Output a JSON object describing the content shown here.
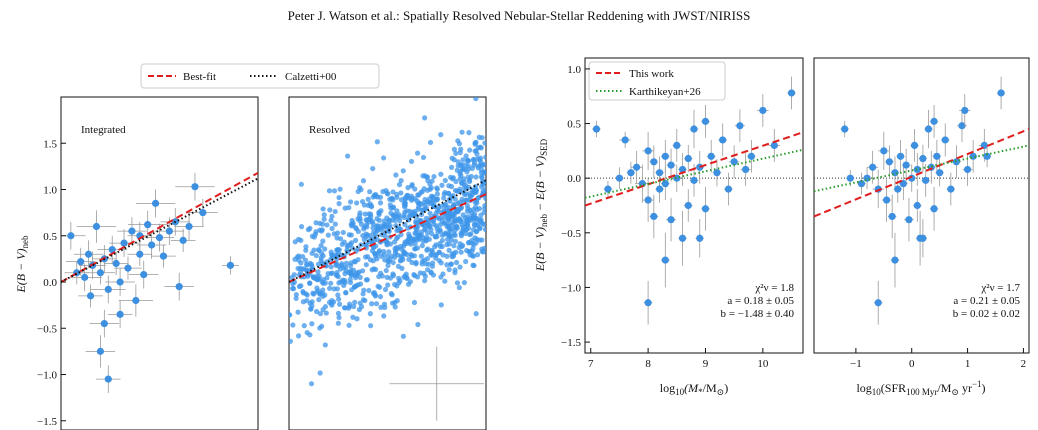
{
  "header": "Peter J. Watson et al.: Spatially Resolved Nebular-Stellar Reddening with JWST/NIRISS",
  "colors": {
    "points": "#3d8fe0",
    "points_light": "#3d95ea",
    "best_fit": "#e01e1e",
    "calzetti": "#111111",
    "karthikeyan": "#2a9d2a",
    "zero_line": "#333333"
  },
  "chart_data": [
    {
      "id": "integrated",
      "type": "scatter",
      "title": "Integrated",
      "ylabel": "E(B − V)neb",
      "ylim": [
        -1.6,
        2.0
      ],
      "yticks": [
        "1.5",
        "1.0",
        "0.5",
        "0.0",
        "−0.5",
        "−1.0",
        "−1.5"
      ],
      "ytick_values": [
        1.5,
        1.0,
        0.5,
        0.0,
        -0.5,
        -1.0,
        -1.5
      ],
      "xlim": [
        0,
        1
      ],
      "legend": {
        "placement": "top",
        "entries": [
          "Best-fit",
          "Calzetti+00"
        ]
      },
      "lines": [
        {
          "name": "Best-fit",
          "style": "dashed",
          "x": [
            0,
            1
          ],
          "y": [
            0.0,
            1.18
          ]
        },
        {
          "name": "Calzetti+00",
          "style": "dotted",
          "x": [
            0,
            1
          ],
          "y": [
            0.0,
            1.12
          ]
        }
      ],
      "points": [
        [
          0.05,
          0.5,
          0.6,
          0.3
        ],
        [
          0.08,
          0.1,
          0.5,
          0.25
        ],
        [
          0.1,
          0.22,
          0.6,
          0.3
        ],
        [
          0.12,
          0.05,
          0.7,
          0.3
        ],
        [
          0.14,
          0.3,
          0.6,
          0.3
        ],
        [
          0.16,
          0.18,
          0.55,
          0.3
        ],
        [
          0.18,
          0.6,
          0.8,
          0.35
        ],
        [
          0.2,
          0.1,
          0.6,
          0.25
        ],
        [
          0.22,
          0.25,
          0.5,
          0.3
        ],
        [
          0.24,
          -0.08,
          0.7,
          0.3
        ],
        [
          0.26,
          0.35,
          0.6,
          0.3
        ],
        [
          0.28,
          0.2,
          0.5,
          0.25
        ],
        [
          0.3,
          0.0,
          0.6,
          0.3
        ],
        [
          0.32,
          0.42,
          0.6,
          0.3
        ],
        [
          0.34,
          0.15,
          0.55,
          0.25
        ],
        [
          0.36,
          0.55,
          0.6,
          0.3
        ],
        [
          0.38,
          -0.2,
          0.7,
          0.35
        ],
        [
          0.4,
          0.3,
          0.5,
          0.25
        ],
        [
          0.42,
          0.08,
          0.6,
          0.3
        ],
        [
          0.44,
          0.62,
          0.8,
          0.3
        ],
        [
          0.46,
          0.4,
          0.6,
          0.3
        ],
        [
          0.48,
          0.85,
          0.8,
          0.3
        ],
        [
          0.5,
          0.48,
          0.6,
          0.3
        ],
        [
          0.52,
          0.28,
          0.5,
          0.25
        ],
        [
          0.55,
          0.55,
          0.6,
          0.3
        ],
        [
          0.58,
          0.65,
          0.6,
          0.3
        ],
        [
          0.6,
          -0.05,
          0.6,
          0.3
        ],
        [
          0.62,
          0.45,
          0.5,
          0.25
        ],
        [
          0.65,
          0.6,
          0.6,
          0.3
        ],
        [
          0.68,
          1.03,
          0.8,
          0.3
        ],
        [
          0.72,
          0.75,
          0.6,
          0.3
        ],
        [
          0.2,
          -0.75,
          0.6,
          0.35
        ],
        [
          0.22,
          -0.45,
          0.6,
          0.3
        ],
        [
          0.24,
          -1.05,
          0.5,
          0.3
        ],
        [
          0.3,
          -0.35,
          0.5,
          0.3
        ],
        [
          0.15,
          -0.15,
          0.5,
          0.25
        ],
        [
          0.4,
          0.5,
          0.5,
          0.3
        ],
        [
          0.86,
          0.18,
          0.35,
          0.2
        ]
      ]
    },
    {
      "id": "resolved",
      "type": "scatter",
      "title": "Resolved",
      "ylim": [
        -1.6,
        2.0
      ],
      "xlim": [
        0,
        1
      ],
      "lines": [
        {
          "name": "Best-fit",
          "style": "dashed",
          "x": [
            0,
            1
          ],
          "y": [
            0.0,
            0.95
          ]
        },
        {
          "name": "Calzetti+00",
          "style": "dotted",
          "x": [
            0,
            1
          ],
          "y": [
            0.0,
            1.1
          ]
        }
      ],
      "n_points": 1100,
      "typical_error": {
        "x": 0.75,
        "y": -1.1
      }
    },
    {
      "id": "mass",
      "type": "scatter",
      "xlabel": "log10(M*/M⊙)",
      "ylabel": "E(B − V)neb − E(B − V)SED",
      "xlim": [
        6.9,
        10.7
      ],
      "ylim": [
        -1.6,
        1.1
      ],
      "xticks": [
        "7",
        "8",
        "9",
        "10"
      ],
      "xtick_values": [
        7,
        8,
        9,
        10
      ],
      "yticks": [
        "1.0",
        "0.5",
        "0.0",
        "−0.5",
        "−1.0",
        "−1.5"
      ],
      "ytick_values": [
        1.0,
        0.5,
        0.0,
        -0.5,
        -1.0,
        -1.5
      ],
      "legend": {
        "placement": "top-left",
        "entries": [
          "This work",
          "Karthikeyan+26"
        ]
      },
      "lines": [
        {
          "name": "This work",
          "style": "dashed",
          "x": [
            6.9,
            10.7
          ],
          "y": [
            -0.25,
            0.42
          ]
        },
        {
          "name": "Karthikeyan+26",
          "style": "dotted",
          "x": [
            6.9,
            10.7
          ],
          "y": [
            -0.18,
            0.26
          ]
        }
      ],
      "annotation": [
        "χ²ν = 1.8",
        "a = 0.18 ± 0.05",
        "b = −1.48 ± 0.40"
      ],
      "points": [
        [
          7.1,
          0.45,
          0.3,
          0.15
        ],
        [
          7.6,
          0.35,
          0.4,
          0.15
        ],
        [
          7.3,
          -0.1,
          0.3,
          0.15
        ],
        [
          7.5,
          0.0,
          0.3,
          0.2
        ],
        [
          7.8,
          0.1,
          0.4,
          0.3
        ],
        [
          7.9,
          -0.05,
          0.5,
          0.35
        ],
        [
          8.0,
          0.25,
          0.4,
          0.35
        ],
        [
          8.0,
          -0.2,
          0.4,
          0.4
        ],
        [
          8.1,
          0.15,
          0.3,
          0.3
        ],
        [
          8.1,
          -0.35,
          0.3,
          0.4
        ],
        [
          8.2,
          0.05,
          0.3,
          0.3
        ],
        [
          8.2,
          -0.1,
          0.3,
          0.25
        ],
        [
          8.3,
          0.2,
          0.3,
          0.3
        ],
        [
          8.3,
          -0.05,
          0.3,
          0.3
        ],
        [
          8.4,
          0.12,
          0.3,
          0.3
        ],
        [
          8.4,
          -0.38,
          0.35,
          0.4
        ],
        [
          8.5,
          0.0,
          0.3,
          0.25
        ],
        [
          8.5,
          0.3,
          0.3,
          0.3
        ],
        [
          8.6,
          0.08,
          0.3,
          0.3
        ],
        [
          8.6,
          -0.55,
          0.3,
          0.5
        ],
        [
          8.7,
          0.18,
          0.3,
          0.25
        ],
        [
          8.8,
          -0.02,
          0.3,
          0.3
        ],
        [
          8.8,
          0.45,
          0.3,
          0.35
        ],
        [
          8.9,
          0.1,
          0.3,
          0.3
        ],
        [
          9.0,
          -0.28,
          0.3,
          0.4
        ],
        [
          9.1,
          0.2,
          0.3,
          0.3
        ],
        [
          9.2,
          0.05,
          0.3,
          0.25
        ],
        [
          9.3,
          0.35,
          0.3,
          0.3
        ],
        [
          9.4,
          -0.1,
          0.3,
          0.3
        ],
        [
          9.5,
          0.15,
          0.35,
          0.3
        ],
        [
          9.6,
          0.48,
          0.35,
          0.3
        ],
        [
          9.7,
          0.08,
          0.35,
          0.3
        ],
        [
          9.8,
          0.2,
          0.3,
          0.3
        ],
        [
          10.0,
          0.62,
          0.4,
          0.3
        ],
        [
          10.2,
          0.3,
          0.4,
          0.3
        ],
        [
          8.0,
          -1.14,
          0.3,
          0.4
        ],
        [
          8.3,
          -0.75,
          0.3,
          0.5
        ],
        [
          8.7,
          -0.25,
          0.3,
          0.3
        ],
        [
          7.7,
          0.05,
          0.3,
          0.2
        ],
        [
          9.0,
          0.52,
          0.3,
          0.3
        ],
        [
          10.5,
          0.78,
          0.3,
          0.3
        ],
        [
          8.9,
          -0.55,
          0.3,
          0.35
        ]
      ]
    },
    {
      "id": "sfr",
      "type": "scatter",
      "xlabel": "log10(SFR100 Myr/M⊙ yr⁻¹)",
      "xlim": [
        -1.75,
        2.1
      ],
      "ylim": [
        -1.6,
        1.1
      ],
      "xticks": [
        "−1",
        "0",
        "1",
        "2"
      ],
      "xtick_values": [
        -1,
        0,
        1,
        2
      ],
      "lines": [
        {
          "name": "This work",
          "style": "dashed",
          "x": [
            -1.75,
            2.1
          ],
          "y": [
            -0.35,
            0.45
          ]
        },
        {
          "name": "Karthikeyan+26",
          "style": "dotted",
          "x": [
            -1.75,
            2.1
          ],
          "y": [
            -0.12,
            0.3
          ]
        }
      ],
      "annotation": [
        "χ²ν = 1.7",
        "a = 0.21 ± 0.05",
        "b = 0.02 ± 0.02"
      ],
      "points": [
        [
          -1.2,
          0.45,
          0.3,
          0.15
        ],
        [
          -1.1,
          0.0,
          0.3,
          0.15
        ],
        [
          -0.9,
          -0.05,
          0.3,
          0.2
        ],
        [
          -0.7,
          0.1,
          0.4,
          0.3
        ],
        [
          -0.6,
          -0.1,
          0.4,
          0.35
        ],
        [
          -0.5,
          0.25,
          0.4,
          0.35
        ],
        [
          -0.45,
          -0.2,
          0.35,
          0.4
        ],
        [
          -0.4,
          0.15,
          0.3,
          0.3
        ],
        [
          -0.35,
          -0.35,
          0.3,
          0.4
        ],
        [
          -0.3,
          0.05,
          0.3,
          0.3
        ],
        [
          -0.25,
          -0.1,
          0.3,
          0.25
        ],
        [
          -0.2,
          0.2,
          0.3,
          0.3
        ],
        [
          -0.15,
          -0.05,
          0.3,
          0.3
        ],
        [
          -0.1,
          0.12,
          0.3,
          0.3
        ],
        [
          -0.05,
          -0.38,
          0.35,
          0.4
        ],
        [
          0.0,
          0.0,
          0.3,
          0.25
        ],
        [
          0.05,
          0.3,
          0.3,
          0.3
        ],
        [
          0.1,
          0.08,
          0.3,
          0.3
        ],
        [
          0.15,
          -0.55,
          0.3,
          0.5
        ],
        [
          0.2,
          0.18,
          0.3,
          0.25
        ],
        [
          0.25,
          -0.02,
          0.3,
          0.3
        ],
        [
          0.3,
          0.45,
          0.3,
          0.35
        ],
        [
          0.35,
          0.1,
          0.3,
          0.3
        ],
        [
          0.4,
          -0.28,
          0.3,
          0.4
        ],
        [
          0.45,
          0.2,
          0.3,
          0.3
        ],
        [
          0.5,
          0.05,
          0.3,
          0.25
        ],
        [
          0.6,
          0.35,
          0.3,
          0.3
        ],
        [
          0.7,
          -0.1,
          0.3,
          0.3
        ],
        [
          0.8,
          0.15,
          0.35,
          0.3
        ],
        [
          0.9,
          0.48,
          0.35,
          0.3
        ],
        [
          1.0,
          0.08,
          0.35,
          0.3
        ],
        [
          1.1,
          0.2,
          0.3,
          0.3
        ],
        [
          0.95,
          0.62,
          0.4,
          0.3
        ],
        [
          1.3,
          0.3,
          0.4,
          0.3
        ],
        [
          -0.6,
          -1.14,
          0.3,
          0.4
        ],
        [
          -0.3,
          -0.75,
          0.3,
          0.5
        ],
        [
          0.1,
          -0.25,
          0.3,
          0.3
        ],
        [
          -0.8,
          0.0,
          0.3,
          0.2
        ],
        [
          0.4,
          0.52,
          0.3,
          0.3
        ],
        [
          1.6,
          0.78,
          0.3,
          0.3
        ],
        [
          0.2,
          -0.55,
          0.3,
          0.35
        ],
        [
          1.35,
          0.2,
          0.3,
          0.2
        ]
      ]
    }
  ]
}
